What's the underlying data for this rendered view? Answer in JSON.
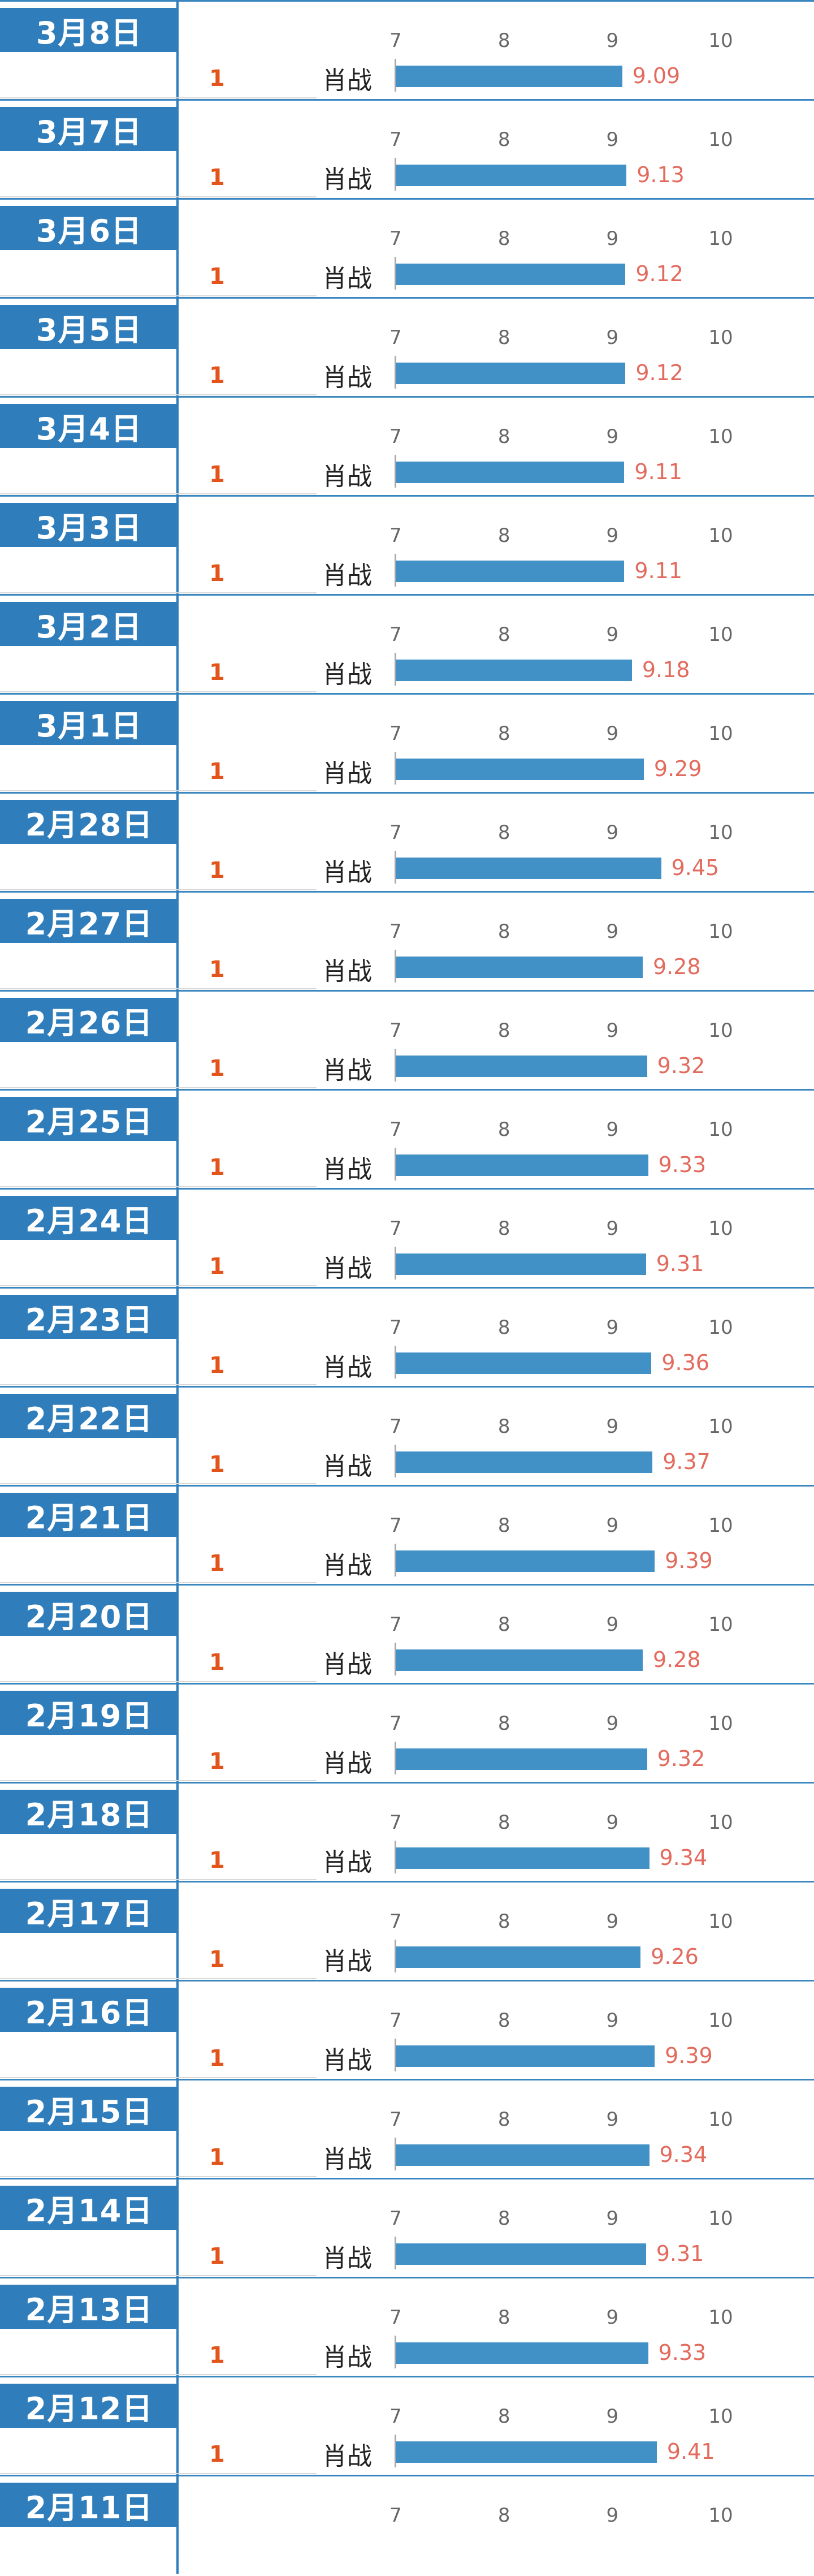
{
  "chart_data": {
    "type": "bar",
    "axis_ticks": [
      "7",
      "8",
      "9",
      "10"
    ],
    "xlim": [
      7,
      10
    ],
    "rows": [
      {
        "date": "3月8日",
        "rank": "1",
        "name": "肖战",
        "value": 9.09,
        "value_label": "9.09"
      },
      {
        "date": "3月7日",
        "rank": "1",
        "name": "肖战",
        "value": 9.13,
        "value_label": "9.13"
      },
      {
        "date": "3月6日",
        "rank": "1",
        "name": "肖战",
        "value": 9.12,
        "value_label": "9.12"
      },
      {
        "date": "3月5日",
        "rank": "1",
        "name": "肖战",
        "value": 9.12,
        "value_label": "9.12"
      },
      {
        "date": "3月4日",
        "rank": "1",
        "name": "肖战",
        "value": 9.11,
        "value_label": "9.11"
      },
      {
        "date": "3月3日",
        "rank": "1",
        "name": "肖战",
        "value": 9.11,
        "value_label": "9.11"
      },
      {
        "date": "3月2日",
        "rank": "1",
        "name": "肖战",
        "value": 9.18,
        "value_label": "9.18"
      },
      {
        "date": "3月1日",
        "rank": "1",
        "name": "肖战",
        "value": 9.29,
        "value_label": "9.29"
      },
      {
        "date": "2月28日",
        "rank": "1",
        "name": "肖战",
        "value": 9.45,
        "value_label": "9.45"
      },
      {
        "date": "2月27日",
        "rank": "1",
        "name": "肖战",
        "value": 9.28,
        "value_label": "9.28"
      },
      {
        "date": "2月26日",
        "rank": "1",
        "name": "肖战",
        "value": 9.32,
        "value_label": "9.32"
      },
      {
        "date": "2月25日",
        "rank": "1",
        "name": "肖战",
        "value": 9.33,
        "value_label": "9.33"
      },
      {
        "date": "2月24日",
        "rank": "1",
        "name": "肖战",
        "value": 9.31,
        "value_label": "9.31"
      },
      {
        "date": "2月23日",
        "rank": "1",
        "name": "肖战",
        "value": 9.36,
        "value_label": "9.36"
      },
      {
        "date": "2月22日",
        "rank": "1",
        "name": "肖战",
        "value": 9.37,
        "value_label": "9.37"
      },
      {
        "date": "2月21日",
        "rank": "1",
        "name": "肖战",
        "value": 9.39,
        "value_label": "9.39"
      },
      {
        "date": "2月20日",
        "rank": "1",
        "name": "肖战",
        "value": 9.28,
        "value_label": "9.28"
      },
      {
        "date": "2月19日",
        "rank": "1",
        "name": "肖战",
        "value": 9.32,
        "value_label": "9.32"
      },
      {
        "date": "2月18日",
        "rank": "1",
        "name": "肖战",
        "value": 9.34,
        "value_label": "9.34"
      },
      {
        "date": "2月17日",
        "rank": "1",
        "name": "肖战",
        "value": 9.26,
        "value_label": "9.26"
      },
      {
        "date": "2月16日",
        "rank": "1",
        "name": "肖战",
        "value": 9.39,
        "value_label": "9.39"
      },
      {
        "date": "2月15日",
        "rank": "1",
        "name": "肖战",
        "value": 9.34,
        "value_label": "9.34"
      },
      {
        "date": "2月14日",
        "rank": "1",
        "name": "肖战",
        "value": 9.31,
        "value_label": "9.31"
      },
      {
        "date": "2月13日",
        "rank": "1",
        "name": "肖战",
        "value": 9.33,
        "value_label": "9.33"
      },
      {
        "date": "2月12日",
        "rank": "1",
        "name": "肖战",
        "value": 9.41,
        "value_label": "9.41"
      },
      {
        "date": "2月11日",
        "rank": "",
        "name": "",
        "value": null,
        "value_label": ""
      }
    ]
  },
  "colors": {
    "date_block": "#2f7dbb",
    "bar": "#4191c6",
    "value_text": "#e26b5e",
    "rank_text": "#e2541a"
  }
}
